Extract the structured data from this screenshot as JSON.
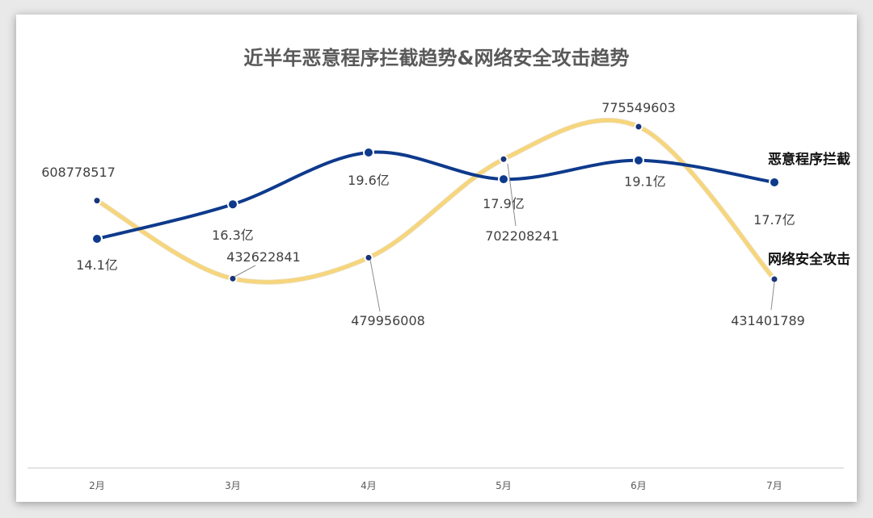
{
  "chart_data": {
    "type": "line",
    "title": "近半年恶意程序拦截趋势&网络安全攻击趋势",
    "categories": [
      "2月",
      "3月",
      "4月",
      "5月",
      "6月",
      "7月"
    ],
    "series": [
      {
        "name": "恶意程序拦截",
        "values": [
          14.1,
          16.3,
          19.6,
          17.9,
          19.1,
          17.7
        ],
        "labels": [
          "14.1亿",
          "16.3亿",
          "19.6亿",
          "17.9亿",
          "19.1亿",
          "17.7亿"
        ],
        "unit": "亿",
        "color": "#0e3a8c"
      },
      {
        "name": "网络安全攻击",
        "values": [
          608778517,
          432622841,
          479956008,
          702208241,
          775549603,
          431401789
        ],
        "labels": [
          "608778517",
          "432622841",
          "479956008",
          "702208241",
          "775549603",
          "431401789"
        ],
        "color": "#f7d57a"
      }
    ],
    "legend": "end-of-line labels",
    "grid": false
  }
}
